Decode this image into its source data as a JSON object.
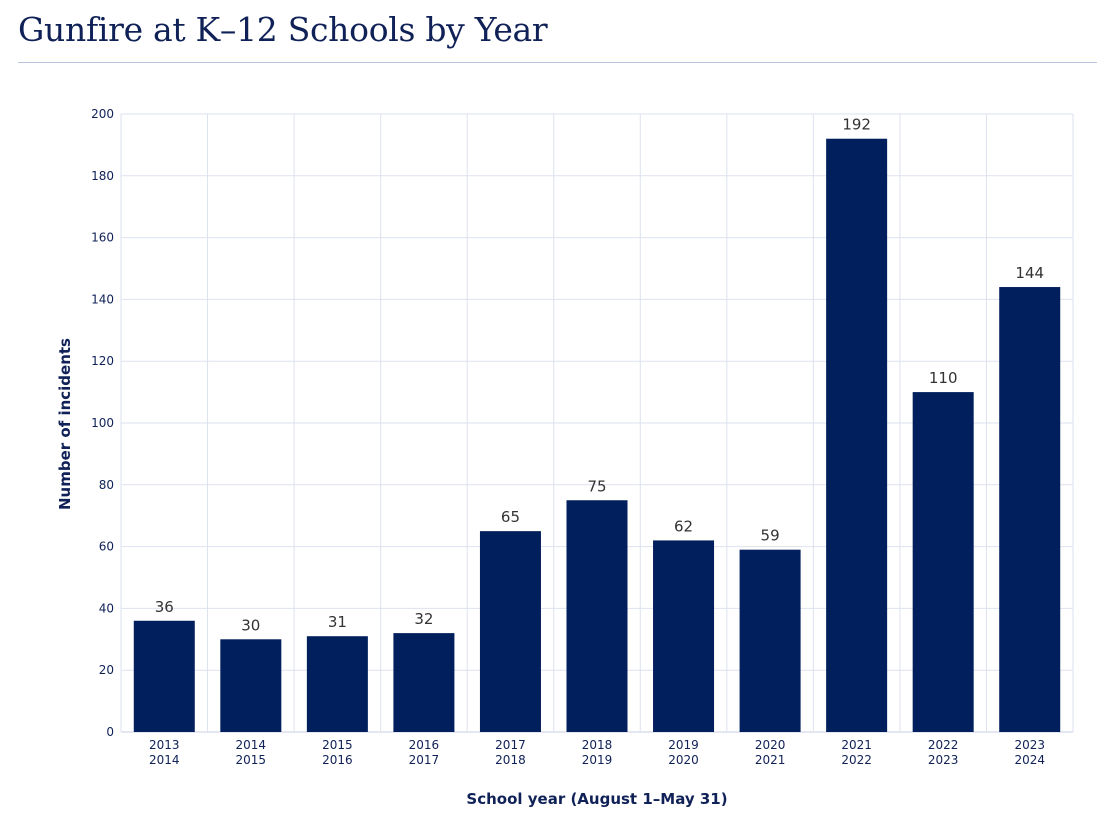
{
  "page": {
    "title": "Gunfire at K–12 Schools by Year"
  },
  "colors": {
    "bar": "#001f5c",
    "grid": "#dde2f0",
    "text": "#0f2157",
    "label": "#333333"
  },
  "chart_data": {
    "type": "bar",
    "categories": [
      [
        "2013",
        "2014"
      ],
      [
        "2014",
        "2015"
      ],
      [
        "2015",
        "2016"
      ],
      [
        "2016",
        "2017"
      ],
      [
        "2017",
        "2018"
      ],
      [
        "2018",
        "2019"
      ],
      [
        "2019",
        "2020"
      ],
      [
        "2020",
        "2021"
      ],
      [
        "2021",
        "2022"
      ],
      [
        "2022",
        "2023"
      ],
      [
        "2023",
        "2024"
      ]
    ],
    "values": [
      36,
      30,
      31,
      32,
      65,
      75,
      62,
      59,
      192,
      110,
      144
    ],
    "xlabel": "School year (August 1–May 31)",
    "ylabel": "Number of incidents",
    "ylim": [
      0,
      200
    ],
    "yticks": [
      0,
      20,
      40,
      60,
      80,
      100,
      120,
      140,
      160,
      180,
      200
    ],
    "grid": true,
    "data_labels": true
  }
}
